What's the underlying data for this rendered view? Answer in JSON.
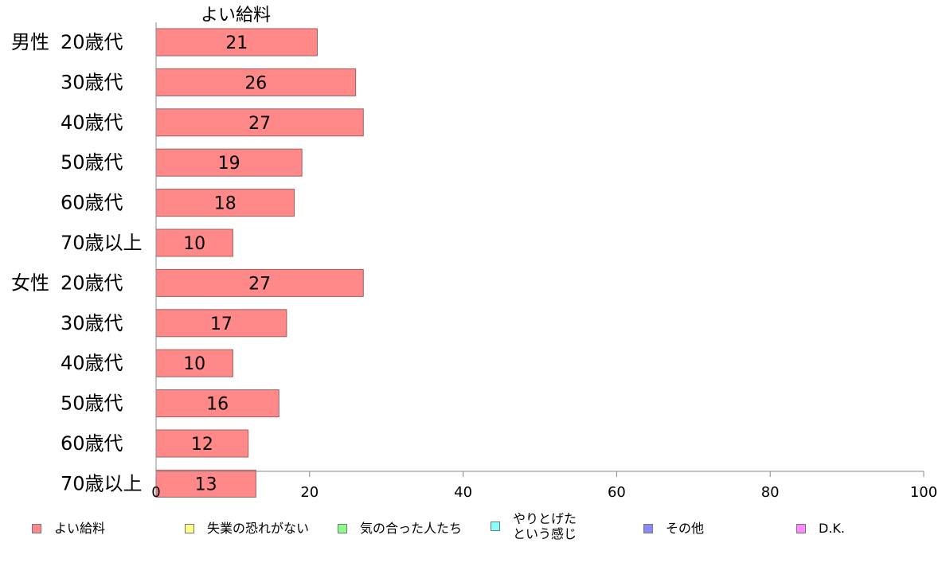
{
  "chart_data": {
    "type": "bar",
    "orientation": "horizontal",
    "title": "よい給料",
    "groups": [
      {
        "label": "男性",
        "categories": [
          "20歳代",
          "30歳代",
          "40歳代",
          "50歳代",
          "60歳代",
          "70歳以上"
        ],
        "values": [
          21,
          26,
          27,
          19,
          18,
          10
        ]
      },
      {
        "label": "女性",
        "categories": [
          "20歳代",
          "30歳代",
          "40歳代",
          "50歳代",
          "60歳代",
          "70歳以上"
        ],
        "values": [
          27,
          17,
          10,
          16,
          12,
          13
        ]
      }
    ],
    "xlim": [
      0,
      100
    ],
    "xticks": [
      0,
      20,
      40,
      60,
      80,
      100
    ],
    "grid": false,
    "legend_position": "bottom",
    "bar_color": "#ff8888",
    "legend": [
      {
        "label": "よい給料",
        "color": "#ff8888"
      },
      {
        "label": "失業の恐れがない",
        "color": "#ffff88"
      },
      {
        "label": "気の合った人たち",
        "color": "#88ff88"
      },
      {
        "label": "やりとげた\nという感じ",
        "color": "#88ffff"
      },
      {
        "label": "その他",
        "color": "#8888ff"
      },
      {
        "label": "D.K.",
        "color": "#ff88ff"
      }
    ]
  }
}
